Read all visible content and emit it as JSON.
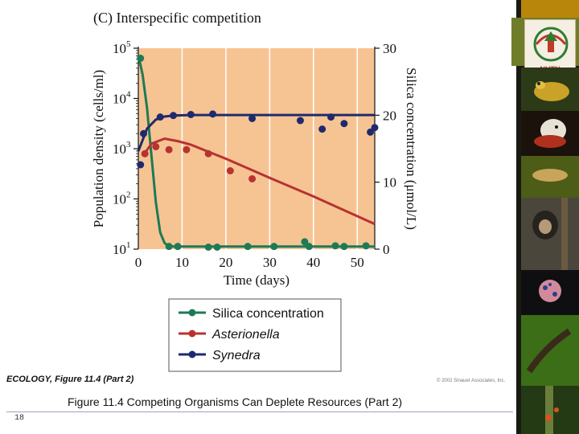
{
  "chart_data": {
    "type": "line",
    "title": "(C)  Interspecific competition",
    "xlabel": "Time (days)",
    "ylabel": "Population density (cells/ml)",
    "y2label": "Silica concentration (μmol/L)",
    "xlim": [
      0,
      54
    ],
    "ylim_log10": [
      1,
      5
    ],
    "y2lim": [
      0,
      30
    ],
    "x_ticks": [
      "0",
      "10",
      "20",
      "30",
      "40",
      "50"
    ],
    "x_tick_values": [
      0,
      10,
      20,
      30,
      40,
      50
    ],
    "y_tick_exponents": [
      5,
      4,
      3,
      2,
      1
    ],
    "y2_ticks": [
      "30",
      "20",
      "10",
      "0"
    ],
    "y2_tick_values": [
      30,
      20,
      10,
      0
    ],
    "legend_position": "bottom",
    "series": [
      {
        "name": "Silica concentration",
        "color": "#1e7a55",
        "axis": "right",
        "points_x": [
          0.5,
          7,
          9,
          16,
          18,
          25,
          31,
          38,
          39,
          45,
          47,
          52
        ],
        "points_y": [
          28.5,
          0.4,
          0.4,
          0.3,
          0.3,
          0.4,
          0.4,
          1.1,
          0.4,
          0.5,
          0.4,
          0.5
        ],
        "curve_x": [
          0,
          1,
          2,
          3,
          4,
          5,
          6,
          7,
          8,
          10,
          20,
          30,
          40,
          54
        ],
        "curve_y": [
          29,
          26,
          21,
          14,
          7,
          2.5,
          0.9,
          0.5,
          0.4,
          0.4,
          0.4,
          0.4,
          0.4,
          0.4
        ]
      },
      {
        "name": "Asterionella",
        "color": "#b83232",
        "axis": "left",
        "italic": true,
        "points_x": [
          1.5,
          4,
          7,
          11,
          16,
          21,
          26
        ],
        "points_y_log10": [
          2.9,
          3.04,
          2.98,
          2.98,
          2.9,
          2.56,
          2.4
        ],
        "curve_x": [
          1,
          3,
          6,
          9,
          12,
          20,
          30,
          40,
          54
        ],
        "curve_y_log10": [
          2.85,
          3.1,
          3.2,
          3.15,
          3.08,
          2.8,
          2.42,
          2.05,
          1.5
        ]
      },
      {
        "name": "Synedra",
        "color": "#1f2a6e",
        "axis": "left",
        "italic": true,
        "points_x": [
          0.5,
          1.2,
          5,
          8,
          12,
          17,
          26,
          37,
          42,
          44,
          47,
          53,
          54
        ],
        "points_y_log10": [
          2.68,
          3.3,
          3.63,
          3.66,
          3.68,
          3.69,
          3.6,
          3.56,
          3.39,
          3.63,
          3.5,
          3.33,
          3.42
        ],
        "curve_x": [
          0,
          2,
          4,
          6,
          8,
          12,
          20,
          30,
          40,
          54
        ],
        "curve_y_log10": [
          2.95,
          3.4,
          3.58,
          3.64,
          3.66,
          3.67,
          3.67,
          3.67,
          3.67,
          3.67
        ]
      }
    ]
  },
  "book_credit": "ECOLOGY, Figure 11.4 (Part 2)",
  "copyright": "© 2002 Sinauer Associates, Inc.",
  "caption": "Figure 11.4  Competing Organisms Can Deplete Resources (Part 2)",
  "page_number": "18",
  "logo_text": "NUTN",
  "colors": {
    "plot_bg": "#f6c493",
    "grid": "#ffffff",
    "frame": "#111111"
  }
}
